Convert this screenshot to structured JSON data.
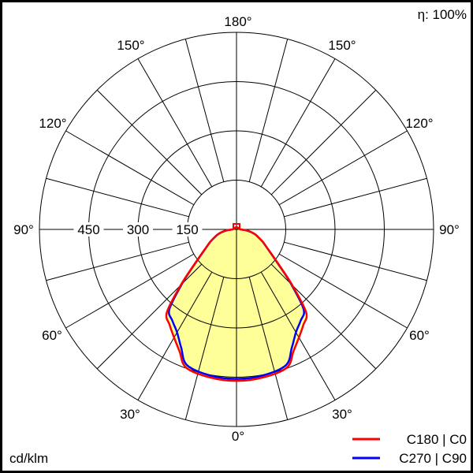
{
  "chart_data": {
    "type": "polar",
    "unit_label": "cd/klm",
    "efficiency_label": "η: 100%",
    "radial_ticks": [
      150,
      300,
      450,
      600
    ],
    "radial_tick_labels": [
      "150",
      "300",
      "450"
    ],
    "rmax": 600,
    "angle_labels": [
      "0°",
      "30°",
      "60°",
      "90°",
      "120°",
      "150°",
      "180°"
    ],
    "angle_step_deg": 15,
    "grid": true,
    "legend_position": "bottom-right",
    "fill_color": "#ffff99",
    "series": [
      {
        "name": "C180 | C0",
        "color": "#ff0000",
        "angles": [
          0,
          10,
          20,
          25,
          30,
          35,
          40,
          45,
          50,
          55,
          60,
          65,
          70,
          75,
          80,
          85,
          90
        ],
        "values": [
          461,
          458,
          448,
          410,
          380,
          355,
          330,
          240,
          170,
          130,
          105,
          88,
          72,
          60,
          45,
          30,
          12
        ]
      },
      {
        "name": "C270 | C90",
        "color": "#0000ff",
        "angles": [
          0,
          10,
          20,
          25,
          30,
          35,
          40,
          45,
          50,
          55,
          60,
          65,
          70,
          75,
          80,
          85,
          90
        ],
        "values": [
          455,
          452,
          440,
          398,
          362,
          340,
          318,
          235,
          168,
          128,
          104,
          87,
          71,
          59,
          44,
          29,
          12
        ]
      }
    ]
  }
}
